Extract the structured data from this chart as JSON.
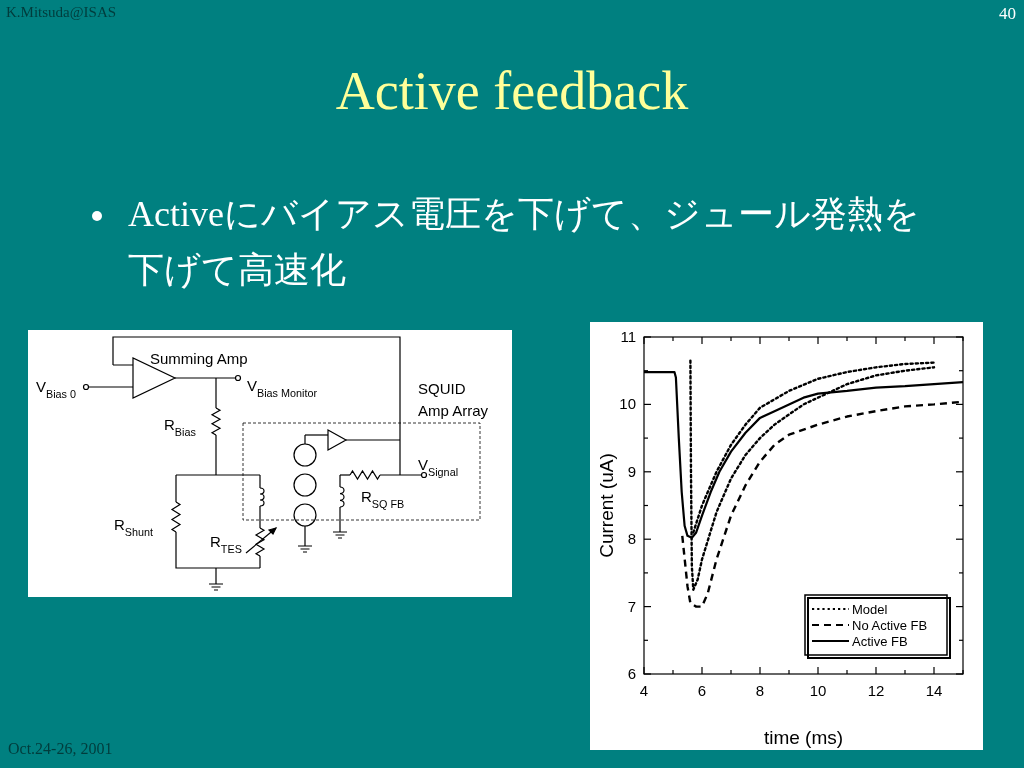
{
  "chart_data": {
    "type": "line",
    "title": "Active feedback",
    "subtitle": "Activeにバイアス電圧を下げて、ジュール発熱を下げて高速化",
    "xlabel": "time (ms)",
    "ylabel": "Current (uA)",
    "annotations": [
      "K.Mitsuda@ISAS",
      "40",
      "Oct.24-26, 2001",
      "V$_{Bias 0}$",
      "Summing Amp",
      "V$_{Bias Monitor}$",
      "R$_{Bias}$",
      "SQUID",
      "Amp Array",
      "V$_{Signal}$",
      "R$_{SQ FB}$",
      "R$_{Shunt}$",
      "R$_{TES}$"
    ],
    "xlim": [
      4,
      15
    ],
    "ylim": [
      6,
      11
    ],
    "xticks": [
      4,
      {
        "value": 5,
        "label": null
      },
      6,
      {
        "value": 7,
        "label": null
      },
      8,
      {
        "value": 9,
        "label": null
      },
      10,
      {
        "value": 11,
        "label": null
      },
      12,
      {
        "value": 13,
        "label": null
      },
      14,
      {
        "value": 15,
        "label": null
      }
    ],
    "yticks": [
      6,
      {
        "value": 6.5,
        "label": null
      },
      7,
      {
        "value": 7.5,
        "label": null
      },
      8,
      {
        "value": 8.5,
        "label": null
      },
      9,
      {
        "value": 9.5,
        "label": null
      },
      10,
      {
        "value": 10.5,
        "label": null
      },
      11
    ],
    "grid": false,
    "legend": "bottom right",
    "marker": "none",
    "series": [
      {
        "name": "Model",
        "color": "#000000",
        "line_style": "dotted",
        "x": [
          5.6,
          5.62,
          5.65,
          5.7,
          5.85,
          6.0,
          6.5,
          7,
          7.5,
          8,
          8.5,
          9,
          9.5,
          10,
          11,
          12,
          13,
          14
        ],
        "values": [
          10.65,
          9.0,
          7.6,
          7.25,
          7.4,
          7.7,
          8.4,
          8.9,
          9.25,
          9.5,
          9.7,
          9.85,
          10.0,
          10.1,
          10.3,
          10.43,
          10.5,
          10.55
        ]
      },
      {
        "color": "#000000",
        "line_style": "dotted",
        "x": [
          5.7,
          6.0,
          6.5,
          7,
          7.5,
          8,
          9,
          10,
          11,
          12,
          13,
          14
        ],
        "values": [
          8.1,
          8.5,
          9.0,
          9.4,
          9.7,
          9.95,
          10.2,
          10.38,
          10.48,
          10.55,
          10.6,
          10.62
        ]
      },
      {
        "name": "No Active FB",
        "color": "#000000",
        "line_style": "dashed",
        "x": [
          5.32,
          5.5,
          5.6,
          5.8,
          6.0,
          6.2,
          6.5,
          7,
          7.5,
          8,
          8.5,
          9,
          10,
          11,
          12,
          13,
          14,
          15
        ],
        "values": [
          8.05,
          7.3,
          7.05,
          7.0,
          7.0,
          7.2,
          7.7,
          8.35,
          8.8,
          9.15,
          9.4,
          9.55,
          9.7,
          9.82,
          9.9,
          9.97,
          10.0,
          10.04
        ]
      },
      {
        "name": "Active FB",
        "color": "#000000",
        "line_style": "solid",
        "x": [
          4,
          5.05,
          5.1,
          5.2,
          5.3,
          5.4,
          5.5,
          5.65,
          5.8,
          6.0,
          6.3,
          6.6,
          7,
          7.5,
          8,
          8.5,
          9,
          9.5,
          10,
          11,
          12,
          13,
          14,
          15
        ],
        "values": [
          10.48,
          10.48,
          10.4,
          9.5,
          8.7,
          8.2,
          8.05,
          8.02,
          8.1,
          8.35,
          8.7,
          9.0,
          9.3,
          9.58,
          9.8,
          9.9,
          10.0,
          10.1,
          10.16,
          10.2,
          10.25,
          10.27,
          10.3,
          10.33
        ]
      }
    ]
  }
}
